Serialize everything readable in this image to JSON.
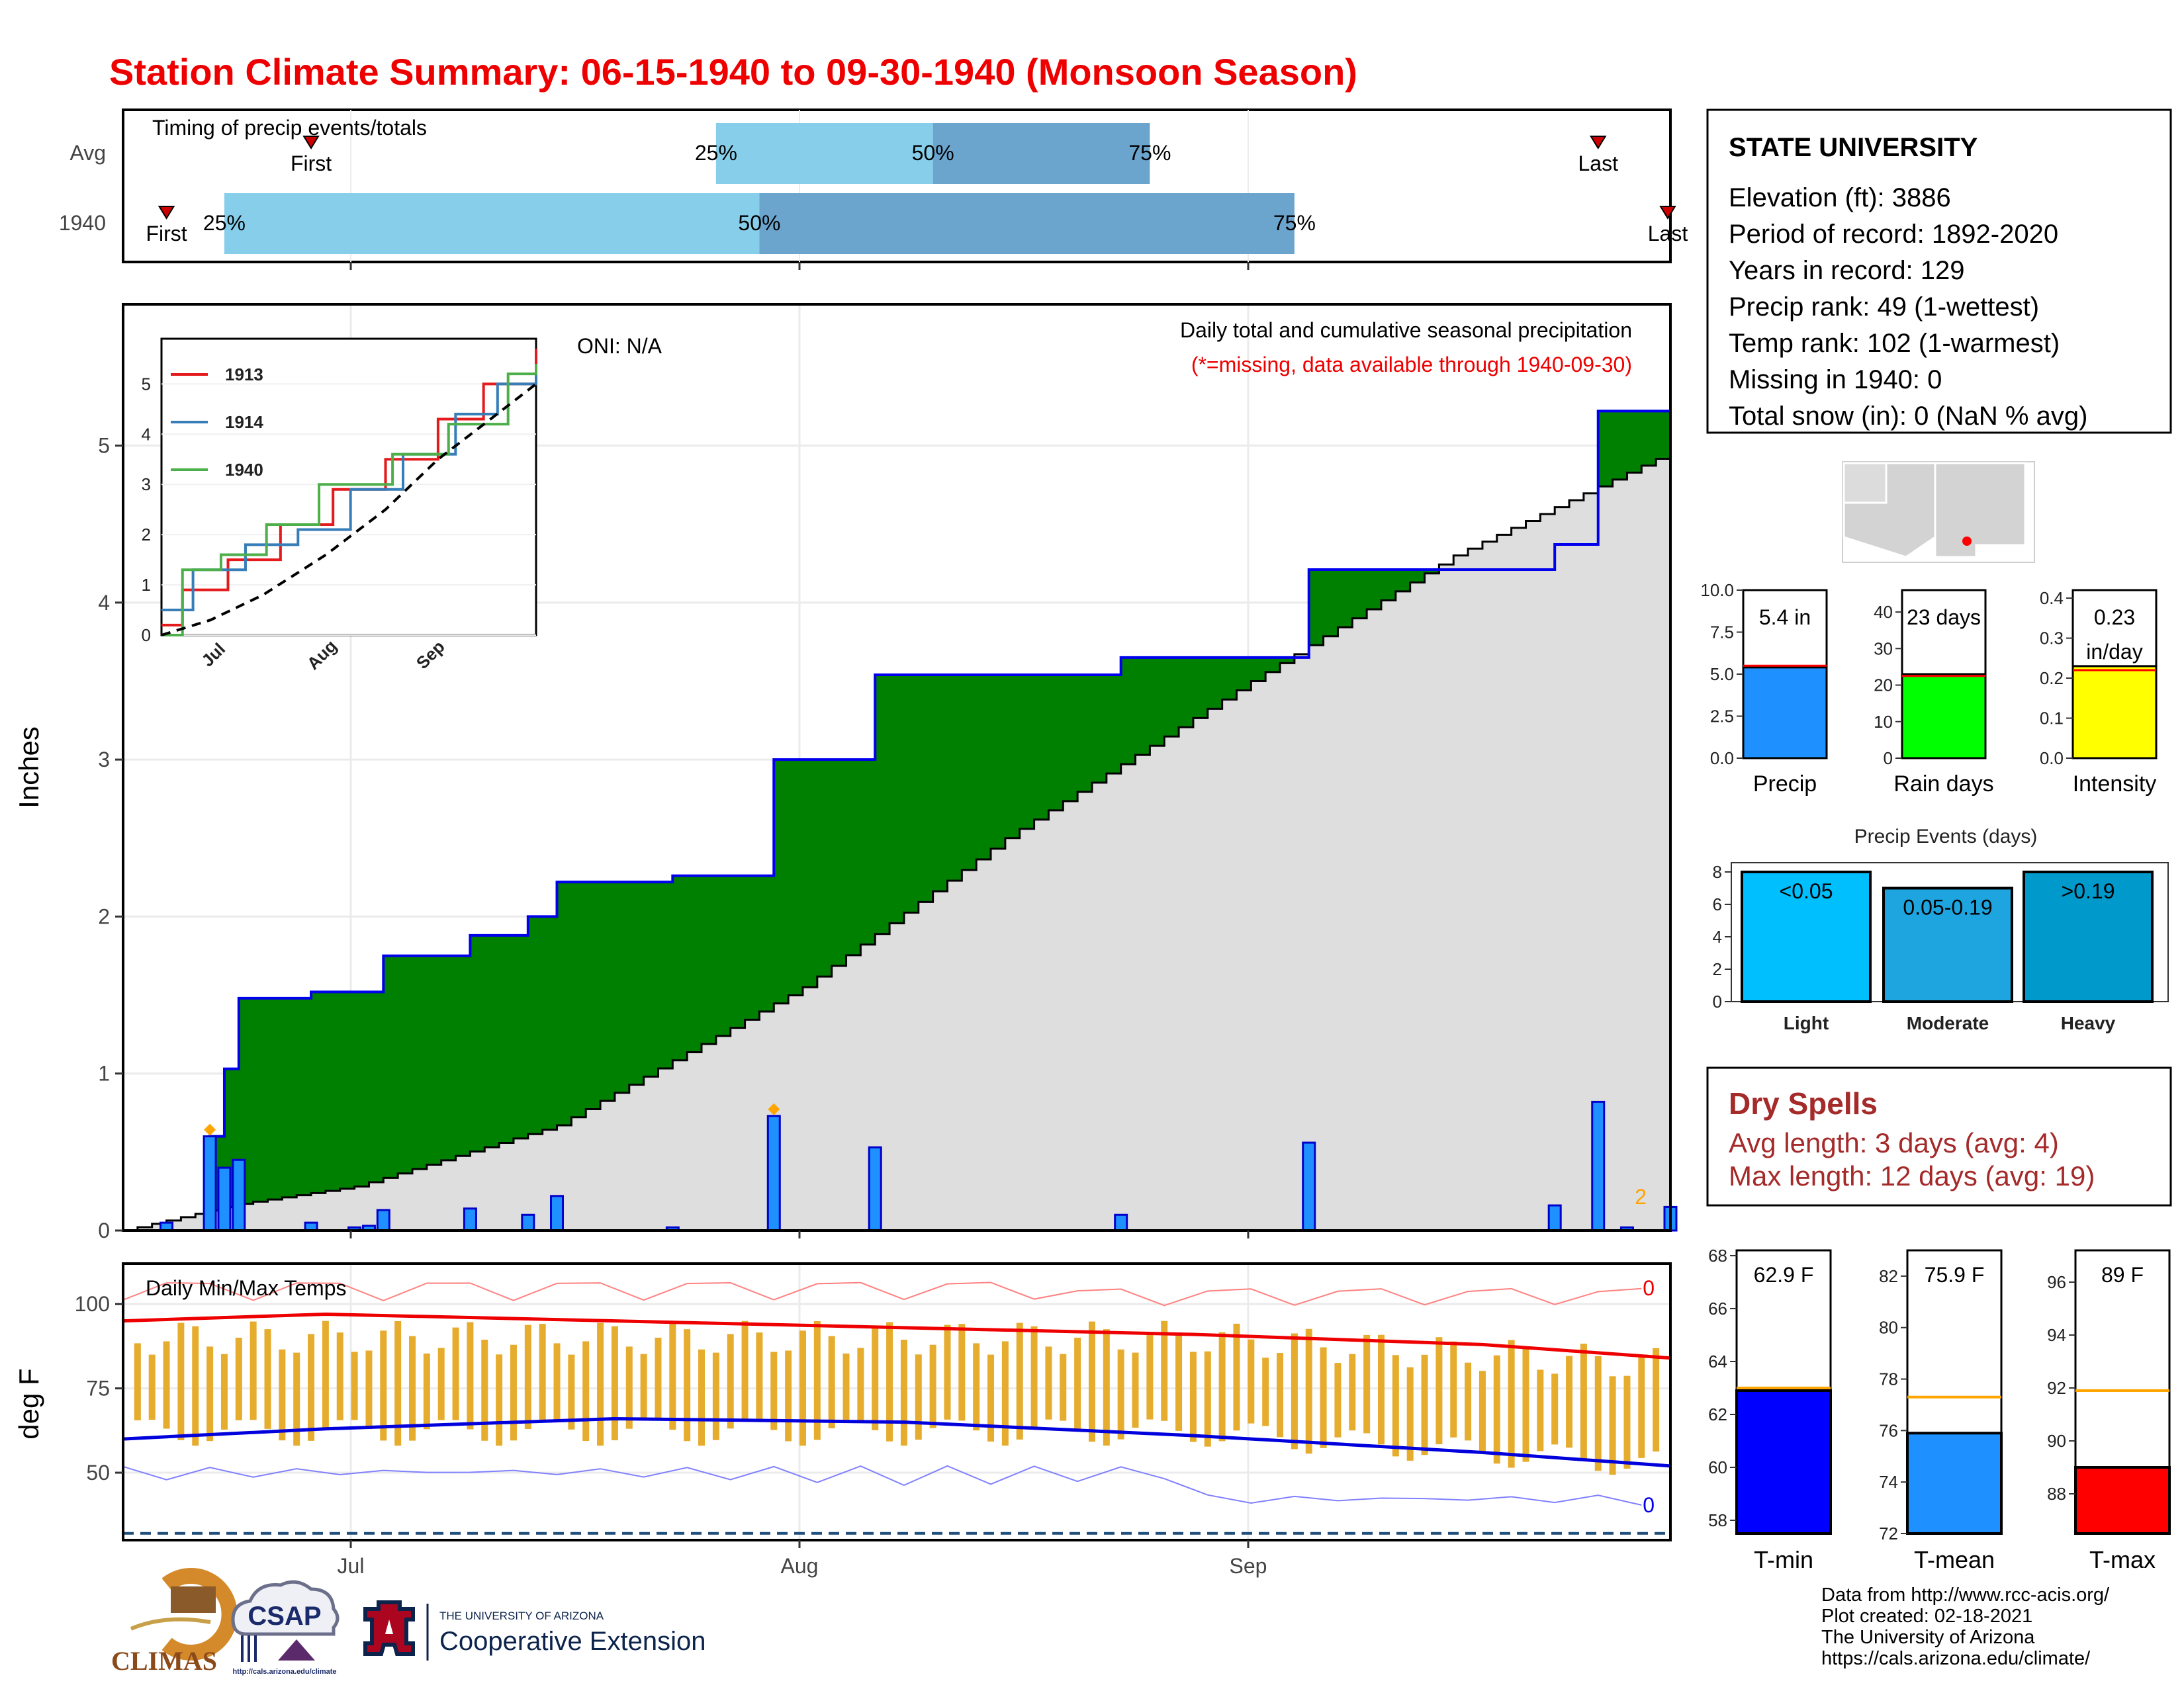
{
  "title": "Station Climate Summary: 06-15-1940 to 09-30-1940 (Monsoon Season)",
  "timing": {
    "caption": "Timing of precip events/totals",
    "rows": [
      {
        "label": "Avg",
        "first": "First",
        "last": "Last",
        "first_date": "1940-06-28",
        "last_date": "1940-09-25",
        "p25": "1940-07-26",
        "p50": "1940-08-10",
        "p75": "1940-08-25"
      },
      {
        "label": "1940",
        "first": "First",
        "last": "Last",
        "first_date": "1940-06-18",
        "last_date": "1940-09-30",
        "p25": "1940-06-22",
        "p50": "1940-07-29",
        "p75": "1940-09-04"
      }
    ],
    "pct_labels": [
      "25%",
      "50%",
      "75%"
    ],
    "colors": {
      "light": "#87ceeb",
      "dark": "#6ba5ce"
    }
  },
  "station": {
    "name": "STATE UNIVERSITY",
    "lines": [
      "Elevation (ft): 3886",
      "Period of record: 1892-2020",
      "Years in record: 129",
      "Precip rank: 49 (1-wettest)",
      "Temp rank: 102 (1-warmest)",
      "Missing in 1940: 0",
      "Total snow (in): 0 (NaN % avg)"
    ]
  },
  "main": {
    "ylabel": "Inches",
    "oni": "ONI: N/A",
    "caption": "Daily total and cumulative seasonal precipitation",
    "note": "(*=missing, data available through 1940-09-30)",
    "corner": "2",
    "months": [
      "Jul",
      "Aug",
      "Sep"
    ],
    "yticks": [
      "0",
      "1",
      "2",
      "3",
      "4",
      "5"
    ]
  },
  "inset": {
    "years": [
      "1913",
      "1914",
      "1940"
    ],
    "colors": [
      "#e41a1c",
      "#377eb8",
      "#4daf4a"
    ],
    "yticks": [
      "0",
      "1",
      "2",
      "3",
      "4",
      "5"
    ],
    "months": [
      "Jul",
      "Aug",
      "Sep"
    ]
  },
  "temps": {
    "caption": "Daily Min/Max Temps",
    "ylabel": "deg F",
    "yticks": [
      "50",
      "75",
      "100"
    ],
    "max_count": "0",
    "min_count": "0"
  },
  "gauges": [
    {
      "label": "Precip",
      "value_text": "5.4 in",
      "value": 5.4,
      "avg": 5.5,
      "max": 10,
      "ticks": [
        "0.0",
        "2.5",
        "5.0",
        "7.5",
        "10.0"
      ],
      "color": "#1e90ff"
    },
    {
      "label": "Rain days",
      "value_text": "23 days",
      "value": 23,
      "avg": 22.5,
      "max": 46,
      "ticks": [
        "0",
        "10",
        "20",
        "30",
        "40"
      ],
      "color": "#00ff00"
    },
    {
      "label": "Intensity",
      "value_text": "0.23 in/day",
      "value": 0.23,
      "avg": 0.22,
      "max": 0.42,
      "ticks": [
        "0.0",
        "0.1",
        "0.2",
        "0.3",
        "0.4"
      ],
      "color": "#ffff00"
    }
  ],
  "events": {
    "title": "Precip Events (days)",
    "ticks": [
      "0",
      "2",
      "4",
      "6",
      "8"
    ],
    "bars": [
      {
        "label": "Light",
        "range": "<0.05",
        "value": 8,
        "color": "#00bfff"
      },
      {
        "label": "Moderate",
        "range": "0.05-0.19",
        "value": 7,
        "color": "#1ea5e0"
      },
      {
        "label": "Heavy",
        "range": ">0.19",
        "value": 8,
        "color": "#0099cc"
      }
    ]
  },
  "dry_spells": {
    "title": "Dry Spells",
    "avg_line": "Avg length: 3 days (avg: 4)",
    "max_line": "Max length: 12 days (avg: 19)"
  },
  "temp_gauges": [
    {
      "label": "T-min",
      "value_text": "62.9 F",
      "value": 62.9,
      "avg": 63.0,
      "min": 57.5,
      "max": 68.2,
      "ticks": [
        "58",
        "60",
        "62",
        "64",
        "66",
        "68"
      ],
      "color": "#0000ff"
    },
    {
      "label": "T-mean",
      "value_text": "75.9 F",
      "value": 75.9,
      "avg": 77.3,
      "min": 72,
      "max": 83,
      "ticks": [
        "72",
        "74",
        "76",
        "78",
        "80",
        "82"
      ],
      "color": "#1e90ff"
    },
    {
      "label": "T-max",
      "value_text": "89 F",
      "value": 89.0,
      "avg": 91.9,
      "min": 86.5,
      "max": 97.2,
      "ticks": [
        "88",
        "90",
        "92",
        "94",
        "96"
      ],
      "color": "#ff0000"
    }
  ],
  "footer": {
    "lines": [
      "Data from http://www.rcc-acis.org/",
      "Plot created: 02-18-2021",
      "The University of Arizona",
      "https://cals.arizona.edu/climate/"
    ],
    "logos": {
      "climas": "CLIMAS",
      "csap": "CSAP",
      "csap_url": "http://cals.arizona.edu/climate",
      "ua_top": "THE UNIVERSITY OF ARIZONA",
      "ua_main": "Cooperative Extension"
    }
  },
  "chart_data": [
    {
      "type": "area",
      "title": "Daily total and cumulative seasonal precipitation",
      "ylabel": "Inches",
      "ylim": [
        0,
        5.9
      ],
      "x_range": [
        "1940-06-15",
        "1940-09-30"
      ],
      "daily_precip_bars": [
        {
          "date": "1940-06-18",
          "in": 0.05
        },
        {
          "date": "1940-06-21",
          "in": 0.6
        },
        {
          "date": "1940-06-22",
          "in": 0.4
        },
        {
          "date": "1940-06-23",
          "in": 0.45
        },
        {
          "date": "1940-06-28",
          "in": 0.05
        },
        {
          "date": "1940-07-01",
          "in": 0.02
        },
        {
          "date": "1940-07-02",
          "in": 0.03
        },
        {
          "date": "1940-07-03",
          "in": 0.13
        },
        {
          "date": "1940-07-09",
          "in": 0.14
        },
        {
          "date": "1940-07-13",
          "in": 0.1
        },
        {
          "date": "1940-07-15",
          "in": 0.22
        },
        {
          "date": "1940-07-23",
          "in": 0.02
        },
        {
          "date": "1940-07-30",
          "in": 0.73
        },
        {
          "date": "1940-08-06",
          "in": 0.53
        },
        {
          "date": "1940-08-23",
          "in": 0.1
        },
        {
          "date": "1940-09-05",
          "in": 0.56
        },
        {
          "date": "1940-09-22",
          "in": 0.16
        },
        {
          "date": "1940-09-25",
          "in": 0.82
        },
        {
          "date": "1940-09-27",
          "in": 0.02
        },
        {
          "date": "1940-09-30",
          "in": 0.15
        }
      ],
      "cumulative_1940": [
        {
          "date": "1940-06-15",
          "in": 0.0
        },
        {
          "date": "1940-06-21",
          "in": 0.6
        },
        {
          "date": "1940-06-22",
          "in": 1.03
        },
        {
          "date": "1940-06-23",
          "in": 1.48
        },
        {
          "date": "1940-06-28",
          "in": 1.52
        },
        {
          "date": "1940-07-03",
          "in": 1.75
        },
        {
          "date": "1940-07-09",
          "in": 1.88
        },
        {
          "date": "1940-07-13",
          "in": 2.0
        },
        {
          "date": "1940-07-15",
          "in": 2.22
        },
        {
          "date": "1940-07-23",
          "in": 2.26
        },
        {
          "date": "1940-07-30",
          "in": 3.0
        },
        {
          "date": "1940-08-06",
          "in": 3.54
        },
        {
          "date": "1940-08-23",
          "in": 3.65
        },
        {
          "date": "1940-09-05",
          "in": 4.21
        },
        {
          "date": "1940-09-22",
          "in": 4.37
        },
        {
          "date": "1940-09-25",
          "in": 5.22
        },
        {
          "date": "1940-09-30",
          "in": 5.4
        }
      ],
      "cumulative_avg": [
        {
          "date": "1940-06-15",
          "in": 0.0
        },
        {
          "date": "1940-06-23",
          "in": 0.17
        },
        {
          "date": "1940-07-01",
          "in": 0.28
        },
        {
          "date": "1940-07-15",
          "in": 0.67
        },
        {
          "date": "1940-08-01",
          "in": 1.55
        },
        {
          "date": "1940-08-15",
          "in": 2.5
        },
        {
          "date": "1940-09-01",
          "in": 3.5
        },
        {
          "date": "1940-09-15",
          "in": 4.3
        },
        {
          "date": "1940-09-30",
          "in": 4.96
        }
      ]
    },
    {
      "type": "line",
      "title": "",
      "series": [
        {
          "name": "1913",
          "values": [
            [
              166,
              0.2
            ],
            [
              172,
              0.9
            ],
            [
              185,
              1.5
            ],
            [
              200,
              2.2
            ],
            [
              215,
              2.9
            ],
            [
              230,
              3.5
            ],
            [
              245,
              4.3
            ],
            [
              258,
              5.0
            ],
            [
              273,
              5.7
            ]
          ]
        },
        {
          "name": "1914",
          "values": [
            [
              166,
              0.5
            ],
            [
              175,
              1.3
            ],
            [
              190,
              1.8
            ],
            [
              205,
              2.1
            ],
            [
              220,
              2.9
            ],
            [
              235,
              3.6
            ],
            [
              250,
              4.4
            ],
            [
              262,
              5.0
            ],
            [
              273,
              5.4
            ]
          ]
        },
        {
          "name": "1940",
          "values": [
            [
              166,
              0.0
            ],
            [
              172,
              1.3
            ],
            [
              183,
              1.6
            ],
            [
              196,
              2.2
            ],
            [
              211,
              3.0
            ],
            [
              232,
              3.6
            ],
            [
              248,
              4.2
            ],
            [
              265,
              5.2
            ],
            [
              273,
              5.4
            ]
          ]
        }
      ],
      "average": [
        [
          166,
          0.0
        ],
        [
          180,
          0.3
        ],
        [
          195,
          0.8
        ],
        [
          213,
          1.6
        ],
        [
          230,
          2.5
        ],
        [
          245,
          3.5
        ],
        [
          260,
          4.3
        ],
        [
          273,
          5.0
        ]
      ]
    },
    {
      "type": "bar",
      "title": "Daily Min/Max Temps",
      "ylabel": "deg F",
      "ylim": [
        30,
        112
      ],
      "record_high_range": [
        100,
        108
      ],
      "avg_max": [
        [
          166,
          95
        ],
        [
          180,
          97
        ],
        [
          200,
          95
        ],
        [
          220,
          93
        ],
        [
          240,
          91
        ],
        [
          260,
          88
        ],
        [
          273,
          84
        ]
      ],
      "avg_min": [
        [
          166,
          60
        ],
        [
          180,
          63
        ],
        [
          200,
          66
        ],
        [
          220,
          65
        ],
        [
          240,
          61
        ],
        [
          260,
          56
        ],
        [
          273,
          52
        ]
      ],
      "freeze_line": 32
    }
  ]
}
